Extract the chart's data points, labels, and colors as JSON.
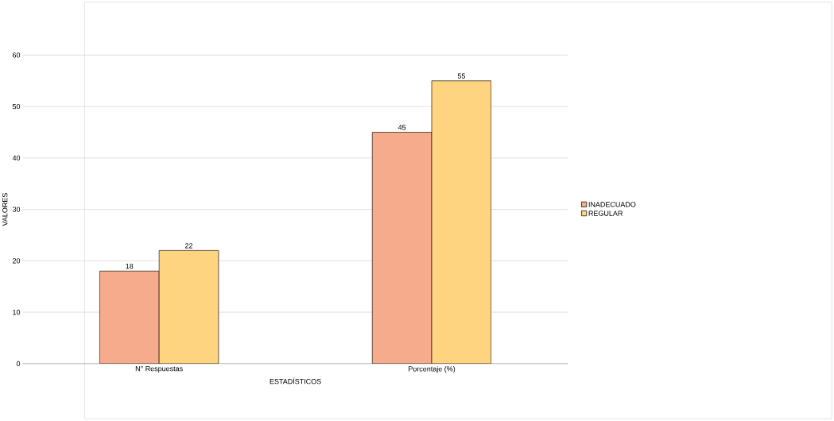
{
  "chart_data": {
    "type": "bar",
    "xlabel": "ESTADÍSTICOS",
    "ylabel": "VALORES",
    "categories": [
      "N° Respuestas",
      "Porcentaje (%)"
    ],
    "series": [
      {
        "name": "INADECUADO",
        "color": "#f5ab8c",
        "values": [
          18,
          45
        ]
      },
      {
        "name": "REGULAR",
        "color": "#fed480",
        "values": [
          22,
          55
        ]
      }
    ],
    "ylim": [
      0,
      60
    ],
    "yticks": [
      0,
      10,
      20,
      30,
      40,
      50,
      60
    ],
    "grid": "y",
    "legend": "right",
    "data_labels": true
  }
}
